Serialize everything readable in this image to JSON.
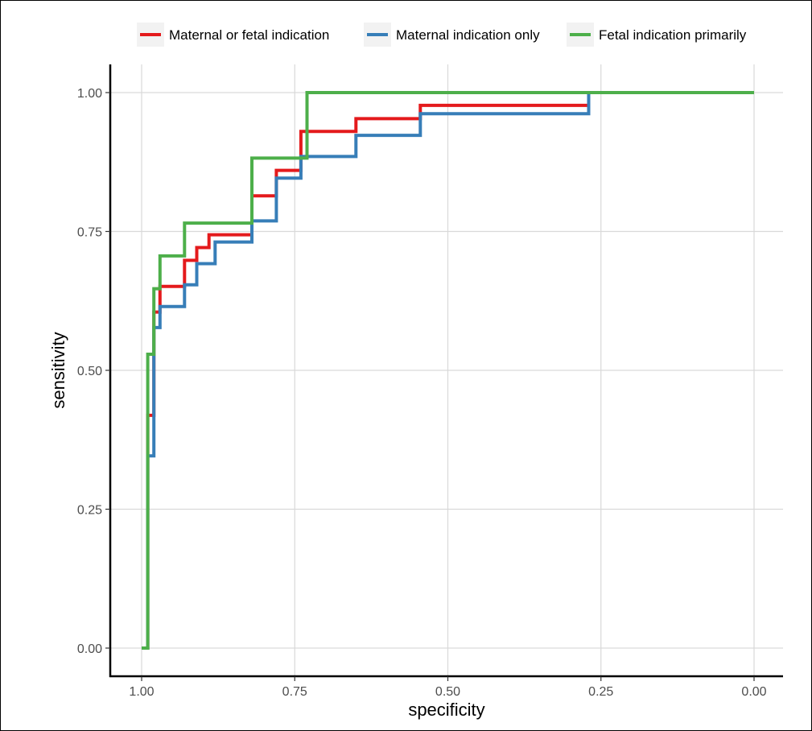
{
  "chart_data": {
    "type": "line",
    "xlabel": "specificity",
    "ylabel": "sensitivity",
    "xlim": [
      1.0,
      0.0
    ],
    "ylim": [
      0.0,
      1.0
    ],
    "x_reversed": true,
    "x_ticks": [
      "1.00",
      "0.75",
      "0.50",
      "0.25",
      "0.00"
    ],
    "y_ticks": [
      "0.00",
      "0.25",
      "0.50",
      "0.75",
      "1.00"
    ],
    "grid": true,
    "legend_position": "top",
    "series": [
      {
        "name": "Maternal or fetal indication",
        "color": "#E41A1C",
        "points": [
          [
            1.0,
            0.0
          ],
          [
            0.99,
            0.0
          ],
          [
            0.99,
            0.419
          ],
          [
            0.98,
            0.419
          ],
          [
            0.98,
            0.605
          ],
          [
            0.97,
            0.605
          ],
          [
            0.97,
            0.651
          ],
          [
            0.93,
            0.651
          ],
          [
            0.93,
            0.698
          ],
          [
            0.91,
            0.698
          ],
          [
            0.91,
            0.721
          ],
          [
            0.89,
            0.721
          ],
          [
            0.89,
            0.744
          ],
          [
            0.82,
            0.744
          ],
          [
            0.82,
            0.814
          ],
          [
            0.78,
            0.814
          ],
          [
            0.78,
            0.86
          ],
          [
            0.74,
            0.86
          ],
          [
            0.74,
            0.93
          ],
          [
            0.65,
            0.93
          ],
          [
            0.65,
            0.953
          ],
          [
            0.545,
            0.953
          ],
          [
            0.545,
            0.977
          ],
          [
            0.27,
            0.977
          ],
          [
            0.27,
            1.0
          ],
          [
            0.0,
            1.0
          ]
        ]
      },
      {
        "name": "Maternal indication only",
        "color": "#377EB8",
        "points": [
          [
            1.0,
            0.0
          ],
          [
            0.99,
            0.0
          ],
          [
            0.99,
            0.346
          ],
          [
            0.98,
            0.346
          ],
          [
            0.98,
            0.577
          ],
          [
            0.97,
            0.577
          ],
          [
            0.97,
            0.615
          ],
          [
            0.93,
            0.615
          ],
          [
            0.93,
            0.654
          ],
          [
            0.91,
            0.654
          ],
          [
            0.91,
            0.692
          ],
          [
            0.88,
            0.692
          ],
          [
            0.88,
            0.731
          ],
          [
            0.82,
            0.731
          ],
          [
            0.82,
            0.769
          ],
          [
            0.78,
            0.769
          ],
          [
            0.78,
            0.846
          ],
          [
            0.74,
            0.846
          ],
          [
            0.74,
            0.885
          ],
          [
            0.65,
            0.885
          ],
          [
            0.65,
            0.923
          ],
          [
            0.545,
            0.923
          ],
          [
            0.545,
            0.962
          ],
          [
            0.27,
            0.962
          ],
          [
            0.27,
            1.0
          ],
          [
            0.0,
            1.0
          ]
        ]
      },
      {
        "name": "Fetal indication primarily",
        "color": "#4DAF4A",
        "points": [
          [
            1.0,
            0.0
          ],
          [
            0.99,
            0.0
          ],
          [
            0.99,
            0.529
          ],
          [
            0.98,
            0.529
          ],
          [
            0.98,
            0.647
          ],
          [
            0.97,
            0.647
          ],
          [
            0.97,
            0.706
          ],
          [
            0.93,
            0.706
          ],
          [
            0.93,
            0.765
          ],
          [
            0.82,
            0.765
          ],
          [
            0.82,
            0.882
          ],
          [
            0.73,
            0.882
          ],
          [
            0.73,
            1.0
          ],
          [
            0.0,
            1.0
          ]
        ]
      }
    ]
  }
}
